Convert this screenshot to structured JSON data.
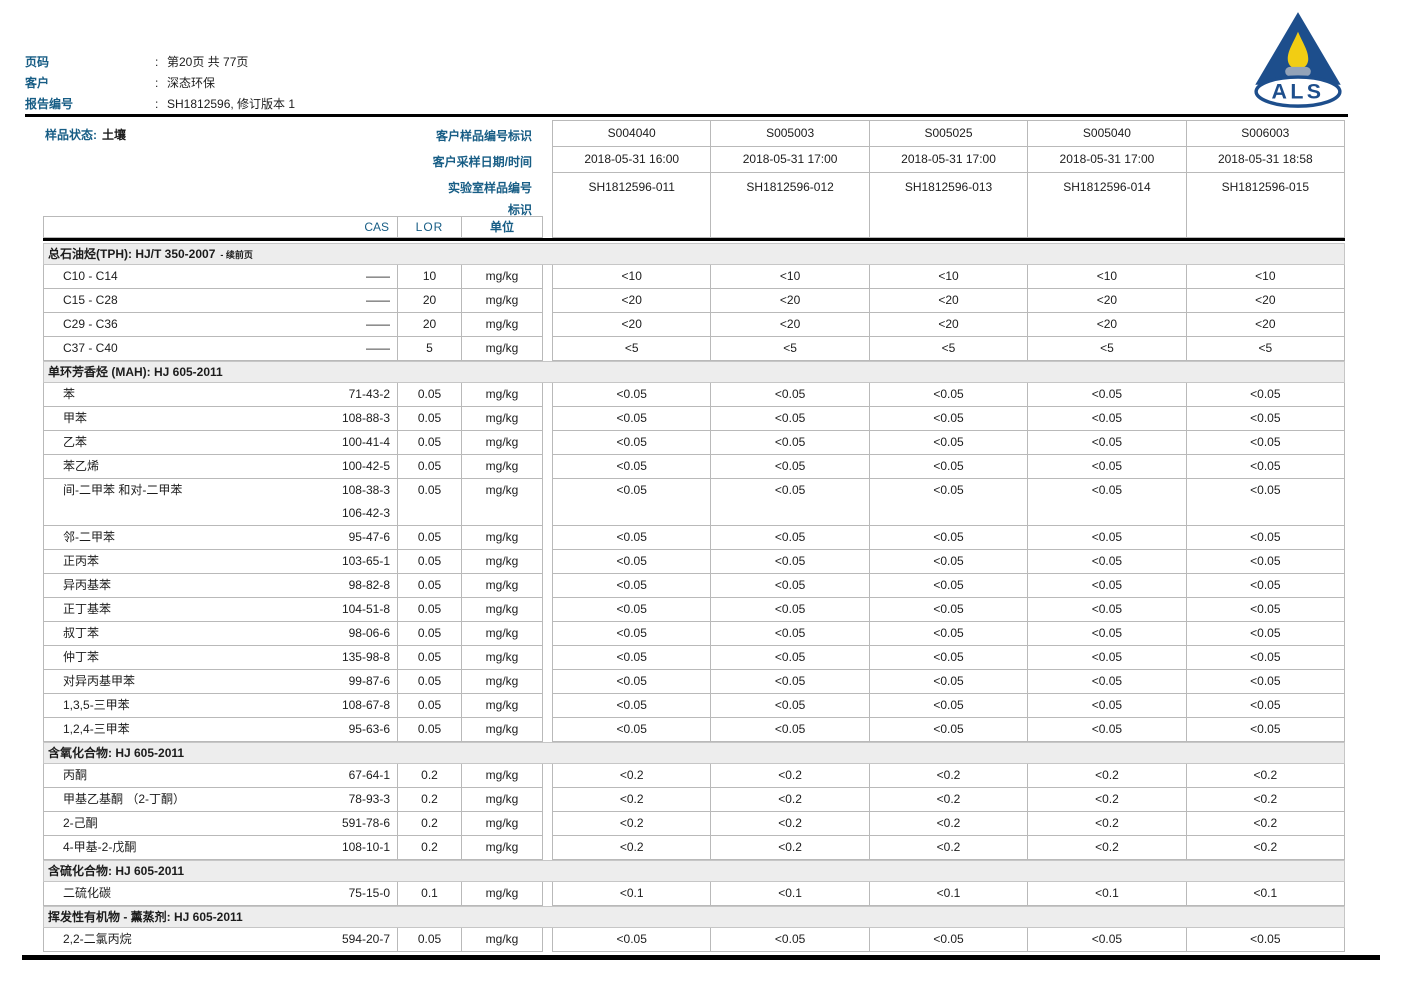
{
  "page": {
    "header": {
      "colon": ":",
      "fields": [
        {
          "label": "页码",
          "value": "第20页 共 77页"
        },
        {
          "label": "客户",
          "value": "深态环保"
        },
        {
          "label": "报告编号",
          "value": "SH1812596, 修订版本 1"
        }
      ],
      "logo_text": "ALS"
    },
    "sample_header": {
      "status_label": "样品状态:",
      "status_value": "土壤",
      "row_labels": [
        "客户样品编号标识",
        "客户采样日期/时间",
        "实验室样品编号",
        "标识"
      ],
      "columns": [
        {
          "id": "S004040",
          "datetime": "2018-05-31 16:00",
          "lab_id": "SH1812596-011"
        },
        {
          "id": "S005003",
          "datetime": "2018-05-31 17:00",
          "lab_id": "SH1812596-012"
        },
        {
          "id": "S005025",
          "datetime": "2018-05-31 17:00",
          "lab_id": "SH1812596-013"
        },
        {
          "id": "S005040",
          "datetime": "2018-05-31 17:00",
          "lab_id": "SH1812596-014"
        },
        {
          "id": "S006003",
          "datetime": "2018-05-31 18:58",
          "lab_id": "SH1812596-015"
        }
      ]
    },
    "table": {
      "headers": {
        "cas": "CAS",
        "lor": "LOR",
        "unit": "单位"
      },
      "sections": [
        {
          "title": "总石油烃(TPH): HJ/T 350-2007",
          "suffix": "- 续前页",
          "rows": [
            {
              "name": "C10 - C14",
              "cas": [
                "——"
              ],
              "lor": "10",
              "unit": "mg/kg",
              "values": [
                "<10",
                "<10",
                "<10",
                "<10",
                "<10"
              ]
            },
            {
              "name": "C15 - C28",
              "cas": [
                "——"
              ],
              "lor": "20",
              "unit": "mg/kg",
              "values": [
                "<20",
                "<20",
                "<20",
                "<20",
                "<20"
              ]
            },
            {
              "name": "C29 - C36",
              "cas": [
                "——"
              ],
              "lor": "20",
              "unit": "mg/kg",
              "values": [
                "<20",
                "<20",
                "<20",
                "<20",
                "<20"
              ]
            },
            {
              "name": "C37 - C40",
              "cas": [
                "——"
              ],
              "lor": "5",
              "unit": "mg/kg",
              "values": [
                "<5",
                "<5",
                "<5",
                "<5",
                "<5"
              ]
            }
          ]
        },
        {
          "title": "单环芳香烃 (MAH): HJ 605-2011",
          "rows": [
            {
              "name": "苯",
              "cas": [
                "71-43-2"
              ],
              "lor": "0.05",
              "unit": "mg/kg",
              "values": [
                "<0.05",
                "<0.05",
                "<0.05",
                "<0.05",
                "<0.05"
              ]
            },
            {
              "name": "甲苯",
              "cas": [
                "108-88-3"
              ],
              "lor": "0.05",
              "unit": "mg/kg",
              "values": [
                "<0.05",
                "<0.05",
                "<0.05",
                "<0.05",
                "<0.05"
              ]
            },
            {
              "name": "乙苯",
              "cas": [
                "100-41-4"
              ],
              "lor": "0.05",
              "unit": "mg/kg",
              "values": [
                "<0.05",
                "<0.05",
                "<0.05",
                "<0.05",
                "<0.05"
              ]
            },
            {
              "name": "苯乙烯",
              "cas": [
                "100-42-5"
              ],
              "lor": "0.05",
              "unit": "mg/kg",
              "values": [
                "<0.05",
                "<0.05",
                "<0.05",
                "<0.05",
                "<0.05"
              ]
            },
            {
              "name": "间-二甲苯 和对-二甲苯",
              "cas": [
                "108-38-3",
                "106-42-3"
              ],
              "lor": "0.05",
              "unit": "mg/kg",
              "values": [
                "<0.05",
                "<0.05",
                "<0.05",
                "<0.05",
                "<0.05"
              ]
            },
            {
              "name": "邻-二甲苯",
              "cas": [
                "95-47-6"
              ],
              "lor": "0.05",
              "unit": "mg/kg",
              "values": [
                "<0.05",
                "<0.05",
                "<0.05",
                "<0.05",
                "<0.05"
              ]
            },
            {
              "name": "正丙苯",
              "cas": [
                "103-65-1"
              ],
              "lor": "0.05",
              "unit": "mg/kg",
              "values": [
                "<0.05",
                "<0.05",
                "<0.05",
                "<0.05",
                "<0.05"
              ]
            },
            {
              "name": "异丙基苯",
              "cas": [
                "98-82-8"
              ],
              "lor": "0.05",
              "unit": "mg/kg",
              "values": [
                "<0.05",
                "<0.05",
                "<0.05",
                "<0.05",
                "<0.05"
              ]
            },
            {
              "name": "正丁基苯",
              "cas": [
                "104-51-8"
              ],
              "lor": "0.05",
              "unit": "mg/kg",
              "values": [
                "<0.05",
                "<0.05",
                "<0.05",
                "<0.05",
                "<0.05"
              ]
            },
            {
              "name": "叔丁苯",
              "cas": [
                "98-06-6"
              ],
              "lor": "0.05",
              "unit": "mg/kg",
              "values": [
                "<0.05",
                "<0.05",
                "<0.05",
                "<0.05",
                "<0.05"
              ]
            },
            {
              "name": "仲丁苯",
              "cas": [
                "135-98-8"
              ],
              "lor": "0.05",
              "unit": "mg/kg",
              "values": [
                "<0.05",
                "<0.05",
                "<0.05",
                "<0.05",
                "<0.05"
              ]
            },
            {
              "name": "对异丙基甲苯",
              "cas": [
                "99-87-6"
              ],
              "lor": "0.05",
              "unit": "mg/kg",
              "values": [
                "<0.05",
                "<0.05",
                "<0.05",
                "<0.05",
                "<0.05"
              ]
            },
            {
              "name": "1,3,5-三甲苯",
              "cas": [
                "108-67-8"
              ],
              "lor": "0.05",
              "unit": "mg/kg",
              "values": [
                "<0.05",
                "<0.05",
                "<0.05",
                "<0.05",
                "<0.05"
              ]
            },
            {
              "name": "1,2,4-三甲苯",
              "cas": [
                "95-63-6"
              ],
              "lor": "0.05",
              "unit": "mg/kg",
              "values": [
                "<0.05",
                "<0.05",
                "<0.05",
                "<0.05",
                "<0.05"
              ]
            }
          ]
        },
        {
          "title": "含氧化合物: HJ 605-2011",
          "rows": [
            {
              "name": "丙酮",
              "cas": [
                "67-64-1"
              ],
              "lor": "0.2",
              "unit": "mg/kg",
              "values": [
                "<0.2",
                "<0.2",
                "<0.2",
                "<0.2",
                "<0.2"
              ]
            },
            {
              "name": "甲基乙基酮 （2-丁酮）",
              "cas": [
                "78-93-3"
              ],
              "lor": "0.2",
              "unit": "mg/kg",
              "values": [
                "<0.2",
                "<0.2",
                "<0.2",
                "<0.2",
                "<0.2"
              ]
            },
            {
              "name": "2-己酮",
              "cas": [
                "591-78-6"
              ],
              "lor": "0.2",
              "unit": "mg/kg",
              "values": [
                "<0.2",
                "<0.2",
                "<0.2",
                "<0.2",
                "<0.2"
              ]
            },
            {
              "name": "4-甲基-2-戊酮",
              "cas": [
                "108-10-1"
              ],
              "lor": "0.2",
              "unit": "mg/kg",
              "values": [
                "<0.2",
                "<0.2",
                "<0.2",
                "<0.2",
                "<0.2"
              ]
            }
          ]
        },
        {
          "title": "含硫化合物: HJ 605-2011",
          "rows": [
            {
              "name": "二硫化碳",
              "cas": [
                "75-15-0"
              ],
              "lor": "0.1",
              "unit": "mg/kg",
              "values": [
                "<0.1",
                "<0.1",
                "<0.1",
                "<0.1",
                "<0.1"
              ]
            }
          ]
        },
        {
          "title": "挥发性有机物 - 薰蒸剂: HJ 605-2011",
          "rows": [
            {
              "name": "2,2-二氯丙烷",
              "cas": [
                "594-20-7"
              ],
              "lor": "0.05",
              "unit": "mg/kg",
              "values": [
                "<0.05",
                "<0.05",
                "<0.05",
                "<0.05",
                "<0.05"
              ]
            }
          ]
        }
      ]
    }
  }
}
